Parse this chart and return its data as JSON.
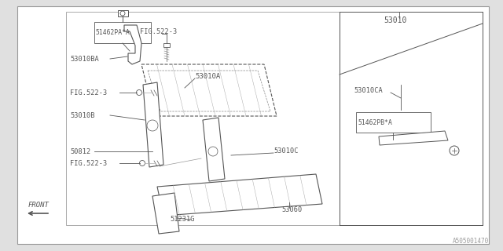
{
  "bg_color": "#e0e0e0",
  "diagram_bg": "#ffffff",
  "line_color": "#555555",
  "text_color": "#555555",
  "watermark": "A505001470",
  "labels": {
    "51462PA_A": "51462PA*A",
    "FIG522_3_top": "FIG.522-3",
    "53010BA": "53010BA",
    "53010A": "53010A",
    "53010": "53010",
    "53010CA": "53010CA",
    "51462PB_A": "51462PB*A",
    "FIG522_3_mid": "FIG.522-3",
    "53010B": "53010B",
    "50812": "50812",
    "FIG522_3_bot": "FIG.522-3",
    "53010C": "53010C",
    "51231G": "51231G",
    "53060": "53060",
    "FRONT": "FRONT"
  }
}
